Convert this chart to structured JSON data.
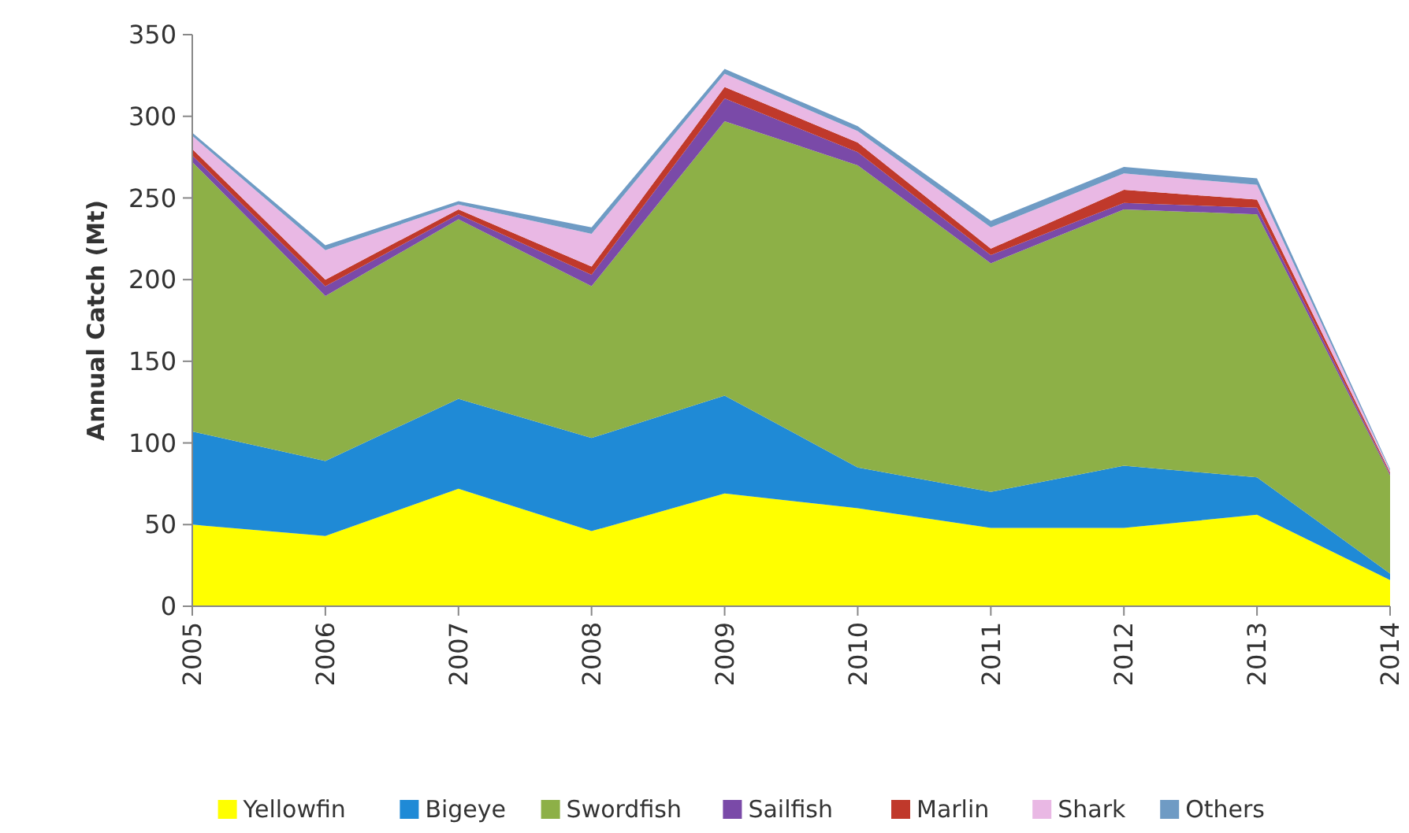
{
  "chart_data": {
    "type": "area",
    "stacked": true,
    "ylabel": "Annual Catch (Mt)",
    "categories": [
      "2005",
      "2006",
      "2007",
      "2008",
      "2009",
      "2010",
      "2011",
      "2012",
      "2013",
      "2014"
    ],
    "ylim": [
      0,
      350
    ],
    "yticks": [
      0,
      50,
      100,
      150,
      200,
      250,
      300,
      350
    ],
    "grid": false,
    "legend": "bottom",
    "series": [
      {
        "name": "Yellowfin",
        "color": "#ffff00",
        "values": [
          50,
          43,
          72,
          46,
          69,
          60,
          48,
          48,
          56,
          16
        ]
      },
      {
        "name": "Bigeye",
        "color": "#1f8ad6",
        "values": [
          57,
          46,
          55,
          57,
          60,
          25,
          22,
          38,
          23,
          4
        ]
      },
      {
        "name": "Swordfish",
        "color": "#8db047",
        "values": [
          165,
          101,
          110,
          93,
          168,
          185,
          140,
          157,
          161,
          60
        ]
      },
      {
        "name": "Sailfish",
        "color": "#7a4aa8",
        "values": [
          4,
          6,
          3,
          7,
          14,
          8,
          5,
          4,
          4,
          1
        ]
      },
      {
        "name": "Marlin",
        "color": "#c0392b",
        "values": [
          4,
          4,
          3,
          5,
          7,
          6,
          4,
          8,
          5,
          1
        ]
      },
      {
        "name": "Shark",
        "color": "#e9b8e4",
        "values": [
          8,
          18,
          3,
          20,
          8,
          7,
          13,
          10,
          9,
          1
        ]
      },
      {
        "name": "Others",
        "color": "#6f9bc4",
        "values": [
          2,
          3,
          2,
          4,
          3,
          3,
          4,
          4,
          4,
          1
        ]
      }
    ]
  }
}
